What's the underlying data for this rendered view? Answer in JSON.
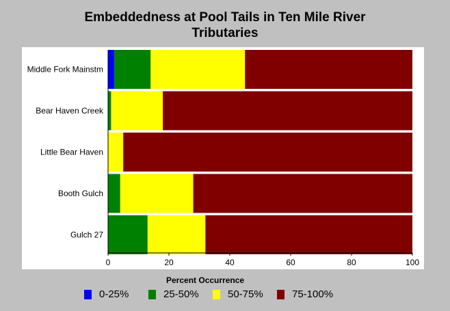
{
  "chart_data": {
    "type": "bar",
    "orientation": "horizontal",
    "stacked": true,
    "title": "Embeddedness at Pool Tails in Ten Mile River Tributaries",
    "title_lines": [
      "Embeddedness at Pool Tails in Ten Mile River",
      "Tributaries"
    ],
    "xlabel": "Percent Occurrence",
    "xlim": [
      0,
      100
    ],
    "xticks": [
      0,
      20,
      40,
      60,
      80,
      100
    ],
    "grid": false,
    "legend_position": "bottom",
    "categories": [
      "Middle Fork Mainstm",
      "Bear Haven Creek",
      "Little Bear Haven",
      "Booth Gulch",
      "Gulch 27"
    ],
    "series": [
      {
        "name": "0-25%",
        "color": "#0000ff",
        "values": [
          2,
          0,
          0,
          0,
          0
        ]
      },
      {
        "name": "25-50%",
        "color": "#008000",
        "values": [
          12,
          1,
          0,
          4,
          13
        ]
      },
      {
        "name": "50-75%",
        "color": "#ffff00",
        "values": [
          31,
          17,
          5,
          24,
          19
        ]
      },
      {
        "name": "75-100%",
        "color": "#800000",
        "values": [
          55,
          82,
          95,
          72,
          68
        ]
      }
    ]
  }
}
